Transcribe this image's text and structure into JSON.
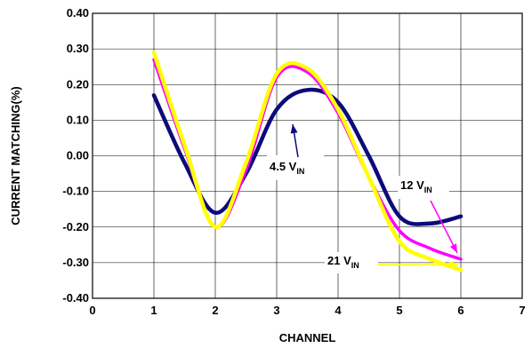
{
  "chart_data": {
    "type": "line",
    "title": "",
    "xlabel": "CHANNEL",
    "ylabel": "CURRENT MATCHING(%)",
    "xlim": [
      0,
      7
    ],
    "ylim": [
      -0.4,
      0.4
    ],
    "xticks": [
      "0",
      "1",
      "2",
      "3",
      "4",
      "5",
      "6",
      "7"
    ],
    "yticks": [
      "-0.40",
      "-0.30",
      "-0.20",
      "-0.10",
      "0.00",
      "0.10",
      "0.20",
      "0.30",
      "0.40"
    ],
    "grid": true,
    "series": [
      {
        "name": "4.5 V_IN",
        "label_main": "4.5 V",
        "label_sub": "IN",
        "color": "#0b0b7a",
        "points": [
          [
            1.0,
            0.17
          ],
          [
            1.5,
            -0.02
          ],
          [
            2.0,
            -0.16
          ],
          [
            2.5,
            -0.05
          ],
          [
            3.0,
            0.13
          ],
          [
            3.5,
            0.185
          ],
          [
            4.0,
            0.15
          ],
          [
            4.5,
            0.0
          ],
          [
            5.0,
            -0.17
          ],
          [
            5.5,
            -0.19
          ],
          [
            6.0,
            -0.17
          ]
        ]
      },
      {
        "name": "12 V_IN",
        "label_main": "12 V",
        "label_sub": "IN",
        "color": "#ff00ff",
        "points": [
          [
            1.0,
            0.27
          ],
          [
            1.5,
            0.02
          ],
          [
            2.0,
            -0.2
          ],
          [
            2.5,
            -0.04
          ],
          [
            3.0,
            0.22
          ],
          [
            3.5,
            0.235
          ],
          [
            4.0,
            0.12
          ],
          [
            4.5,
            -0.06
          ],
          [
            5.0,
            -0.21
          ],
          [
            5.5,
            -0.26
          ],
          [
            6.0,
            -0.29
          ]
        ]
      },
      {
        "name": "21 V_IN",
        "label_main": "21 V",
        "label_sub": "IN",
        "color": "#ffff00",
        "points": [
          [
            1.0,
            0.29
          ],
          [
            1.5,
            0.03
          ],
          [
            2.0,
            -0.2
          ],
          [
            2.5,
            -0.02
          ],
          [
            3.0,
            0.23
          ],
          [
            3.5,
            0.245
          ],
          [
            4.0,
            0.13
          ],
          [
            4.5,
            -0.06
          ],
          [
            5.0,
            -0.24
          ],
          [
            5.5,
            -0.29
          ],
          [
            6.0,
            -0.32
          ]
        ]
      }
    ]
  },
  "colors": {
    "axes": "#000000",
    "grid": "#000000",
    "arrow_45": "#0b0b7a",
    "arrow_12": "#ff00ff",
    "arrow_21": "#ffff00"
  }
}
